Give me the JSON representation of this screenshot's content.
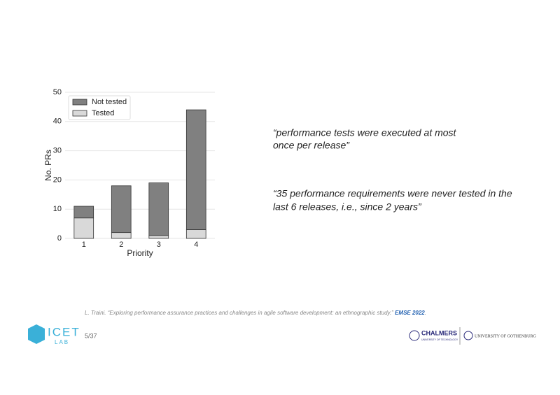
{
  "chart_data": {
    "type": "stacked_bar",
    "x_label": "Priority",
    "y_label": "No. PRs",
    "categories": [
      "1",
      "2",
      "3",
      "4"
    ],
    "series": [
      {
        "name": "Tested",
        "color": "#d9d9d9",
        "values": [
          7,
          2,
          1,
          3
        ]
      },
      {
        "name": "Not tested",
        "color": "#808080",
        "values": [
          4,
          16,
          18,
          41
        ]
      }
    ],
    "ylim": [
      0,
      50
    ],
    "yticks": [
      0,
      10,
      20,
      30,
      40,
      50
    ],
    "grid": true,
    "legend": "upper left"
  },
  "quotes": [
    "“performance tests were executed at most",
    "once per release”",
    "“35 performance requirements were never tested in the",
    "last 6 releases, i.e., since 2 years”"
  ],
  "citation": {
    "text": "L. Traini. “Exploring performance assurance practices and challenges in agile software development: an ethnographic study.” ",
    "venue": "EMSE 2022",
    "end": "."
  },
  "page": "5/37",
  "logos": {
    "icet": "ICET",
    "lab": "LAB",
    "chalmers": "CHALMERS",
    "chalmers_sub": "UNIVERSITY OF TECHNOLOGY",
    "gothenburg": "UNIVERSITY OF GOTHENBURG"
  }
}
